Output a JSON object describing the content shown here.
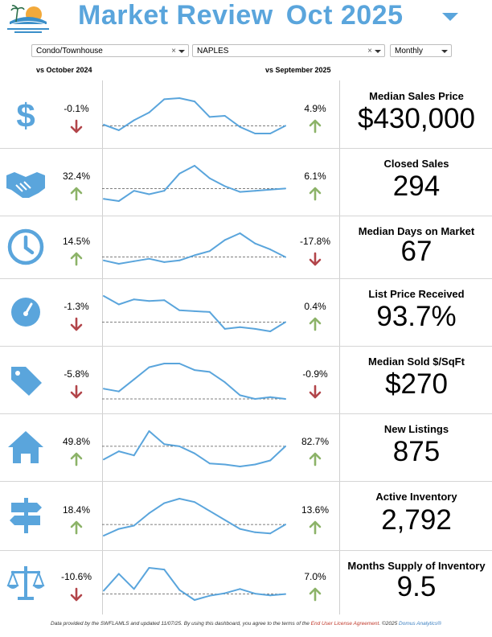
{
  "header": {
    "title": "Market Review",
    "month": "Oct 2025"
  },
  "filters": {
    "property_type": "Condo/Townhouse",
    "area": "NAPLES",
    "period": "Monthly"
  },
  "columns": {
    "left": "vs October 2024",
    "right": "vs September 2025"
  },
  "colors": {
    "accent": "#5aa5dc",
    "up": "#8cb368",
    "down": "#b2454a"
  },
  "chart_data": [
    {
      "type": "line",
      "title": "Median Sales Price",
      "value": "$430,000",
      "yoy": "-0.1%",
      "yoy_dir": "down",
      "mom": "4.9%",
      "mom_dir": "up",
      "icon": "dollar-icon",
      "series": [
        {
          "values": [
            0.2,
            -0.3,
            0.6,
            1.3,
            2.5,
            2.6,
            2.3,
            0.9,
            1.0,
            0.0,
            -0.6,
            -0.6,
            0.1
          ]
        }
      ]
    },
    {
      "type": "line",
      "title": "Closed Sales",
      "value": "294",
      "yoy": "32.4%",
      "yoy_dir": "up",
      "mom": "6.1%",
      "mom_dir": "up",
      "icon": "handshake-icon",
      "series": [
        {
          "values": [
            -0.9,
            -1.1,
            -0.2,
            -0.5,
            -0.2,
            1.3,
            2.0,
            0.9,
            0.2,
            -0.3,
            -0.2,
            -0.1,
            0.0
          ]
        }
      ]
    },
    {
      "type": "line",
      "title": "Median Days on Market",
      "value": "67",
      "yoy": "14.5%",
      "yoy_dir": "up",
      "mom": "-17.8%",
      "mom_dir": "down",
      "icon": "clock-icon",
      "series": [
        {
          "values": [
            -0.4,
            -0.8,
            -0.5,
            -0.2,
            -0.6,
            -0.4,
            0.2,
            0.7,
            2.0,
            2.8,
            1.6,
            0.9,
            0.0
          ]
        }
      ]
    },
    {
      "type": "line",
      "title": "List Price Received",
      "value": "93.7%",
      "yoy": "-1.3%",
      "yoy_dir": "down",
      "mom": "0.4%",
      "mom_dir": "up",
      "icon": "gauge-icon",
      "series": [
        {
          "values": [
            3.1,
            2.1,
            2.7,
            2.5,
            2.6,
            1.4,
            1.3,
            1.2,
            -0.8,
            -0.6,
            -0.8,
            -1.1,
            0.0
          ]
        }
      ]
    },
    {
      "type": "line",
      "title": "Median Sold $/SqFt",
      "value": "$270",
      "yoy": "-5.8%",
      "yoy_dir": "down",
      "mom": "-0.9%",
      "mom_dir": "down",
      "icon": "tag-icon",
      "series": [
        {
          "values": [
            0.3,
            0.0,
            1.3,
            2.6,
            3.0,
            3.0,
            2.3,
            2.1,
            1.0,
            -0.4,
            -0.8,
            -0.6,
            -0.8
          ]
        }
      ]
    },
    {
      "type": "line",
      "title": "New Listings",
      "value": "875",
      "yoy": "49.8%",
      "yoy_dir": "up",
      "mom": "82.7%",
      "mom_dir": "up",
      "icon": "house-icon",
      "series": [
        {
          "values": [
            -1.3,
            -0.5,
            -0.9,
            1.5,
            0.2,
            0.0,
            -0.7,
            -1.7,
            -1.8,
            -2.0,
            -1.8,
            -1.4,
            0.0
          ]
        }
      ]
    },
    {
      "type": "line",
      "title": "Active Inventory",
      "value": "2,792",
      "yoy": "18.4%",
      "yoy_dir": "up",
      "mom": "13.6%",
      "mom_dir": "up",
      "icon": "signpost-icon",
      "series": [
        {
          "values": [
            -1.0,
            -0.4,
            -0.1,
            1.0,
            1.9,
            2.3,
            2.0,
            1.2,
            0.4,
            -0.4,
            -0.7,
            -0.8,
            0.0
          ]
        }
      ]
    },
    {
      "type": "line",
      "title": "Months Supply of Inventory",
      "value": "9.5",
      "yoy": "-10.6%",
      "yoy_dir": "down",
      "mom": "7.0%",
      "mom_dir": "up",
      "icon": "scales-icon",
      "series": [
        {
          "values": [
            0.8,
            4.8,
            1.2,
            6.2,
            5.8,
            1.0,
            -1.4,
            -0.4,
            0.2,
            1.2,
            0.1,
            -0.3,
            0.0
          ]
        }
      ]
    }
  ],
  "footer": {
    "prefix": "Data provided by the SWFLAMLS and updated 11/07/25.  By using this dashboard, you agree to the terms of the ",
    "link": "End User License Agreement",
    "suffix": ".  ©2025 ",
    "brand": "Domus Analytics®"
  }
}
